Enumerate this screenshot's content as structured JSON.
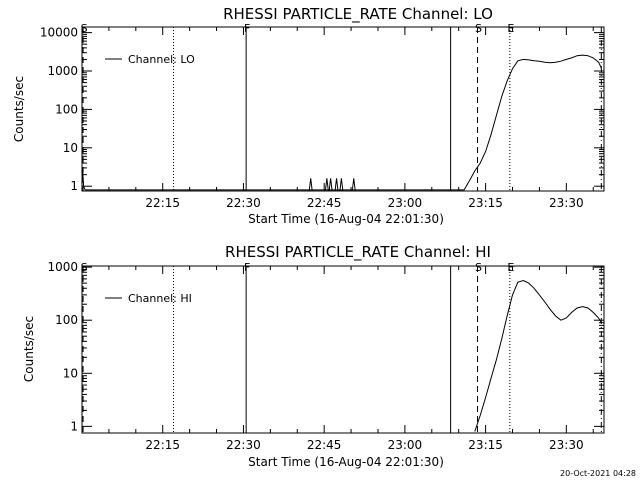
{
  "footer": {
    "timestamp": "20-Oct-2021 04:28"
  },
  "chart_data": [
    {
      "type": "line",
      "title": "RHESSI PARTICLE_RATE Channel: LO",
      "xlabel": "Start Time (16-Aug-04 22:01:30)",
      "ylabel": "Counts/sec",
      "x_tick_labels": [
        "22:15",
        "22:30",
        "22:45",
        "23:00",
        "23:15",
        "23:30"
      ],
      "x_tick_values_min": [
        15,
        30,
        45,
        60,
        75,
        90
      ],
      "xlim_min": [
        0,
        97
      ],
      "y_scale": "log",
      "y_tick_labels": [
        "1",
        "10",
        "100",
        "1000",
        "10000"
      ],
      "ylim": [
        0.75,
        14000
      ],
      "legend": {
        "label": "Channel: LO",
        "position": "top-left"
      },
      "vlines": [
        {
          "x_min": 0.2,
          "style": "dashed",
          "label": "S"
        },
        {
          "x_min": 17,
          "style": "dotted",
          "label": ""
        },
        {
          "x_min": 30.5,
          "style": "solid",
          "label": "F"
        },
        {
          "x_min": 68.5,
          "style": "solid",
          "label": ""
        },
        {
          "x_min": 73.5,
          "style": "dashed",
          "label": "S"
        },
        {
          "x_min": 79.5,
          "style": "dotted",
          "label": "E"
        },
        {
          "x_min": 96.5,
          "style": "dashdot",
          "label": ""
        }
      ],
      "spikes": [
        {
          "x_min": 42.5,
          "y": 1.6
        },
        {
          "x_min": 45.5,
          "y": 1.6
        },
        {
          "x_min": 46.2,
          "y": 1.6
        },
        {
          "x_min": 47.3,
          "y": 1.6
        },
        {
          "x_min": 48.2,
          "y": 1.6
        },
        {
          "x_min": 50.5,
          "y": 1.6
        }
      ],
      "series": [
        {
          "x": [
            0.1,
            0.3,
            0.6,
            71,
            72,
            73,
            74,
            75,
            76,
            77,
            78,
            79,
            80,
            81,
            82,
            83,
            84,
            85,
            86,
            87,
            88,
            89,
            90,
            91,
            92,
            93,
            94,
            95,
            96,
            96.5
          ],
          "y": [
            3,
            1,
            0.8,
            0.8,
            1.4,
            2.5,
            4,
            8,
            22,
            70,
            220,
            550,
            1150,
            1850,
            2000,
            1950,
            1850,
            1800,
            1700,
            1650,
            1700,
            1800,
            2000,
            2200,
            2500,
            2600,
            2500,
            2200,
            1700,
            1200
          ]
        }
      ]
    },
    {
      "type": "line",
      "title": "RHESSI PARTICLE_RATE Channel: HI",
      "xlabel": "Start Time (16-Aug-04 22:01:30)",
      "ylabel": "Counts/sec",
      "x_tick_labels": [
        "22:15",
        "22:30",
        "22:45",
        "23:00",
        "23:15",
        "23:30"
      ],
      "x_tick_values_min": [
        15,
        30,
        45,
        60,
        75,
        90
      ],
      "xlim_min": [
        0,
        97
      ],
      "y_scale": "log",
      "y_tick_labels": [
        "1",
        "10",
        "100",
        "1000"
      ],
      "ylim": [
        0.75,
        1050
      ],
      "legend": {
        "label": "Channel: HI",
        "position": "top-left"
      },
      "vlines": [
        {
          "x_min": 0.2,
          "style": "dashed",
          "label": "S"
        },
        {
          "x_min": 17,
          "style": "dotted",
          "label": ""
        },
        {
          "x_min": 30.5,
          "style": "solid",
          "label": "F"
        },
        {
          "x_min": 68.5,
          "style": "solid",
          "label": ""
        },
        {
          "x_min": 73.5,
          "style": "dashed",
          "label": "S"
        },
        {
          "x_min": 79.5,
          "style": "dotted",
          "label": "E"
        },
        {
          "x_min": 96.5,
          "style": "dashdot",
          "label": ""
        }
      ],
      "spikes": [],
      "series": [
        {
          "x": [
            73,
            74,
            75,
            76,
            77,
            78,
            79,
            80,
            81,
            82,
            83,
            84,
            85,
            86,
            87,
            88,
            89,
            90,
            91,
            92,
            93,
            94,
            95,
            96,
            96.5
          ],
          "y": [
            0.8,
            1.6,
            3.5,
            8,
            18,
            45,
            120,
            300,
            520,
            560,
            500,
            400,
            300,
            220,
            160,
            120,
            100,
            110,
            140,
            170,
            180,
            170,
            140,
            110,
            90
          ]
        }
      ]
    }
  ]
}
